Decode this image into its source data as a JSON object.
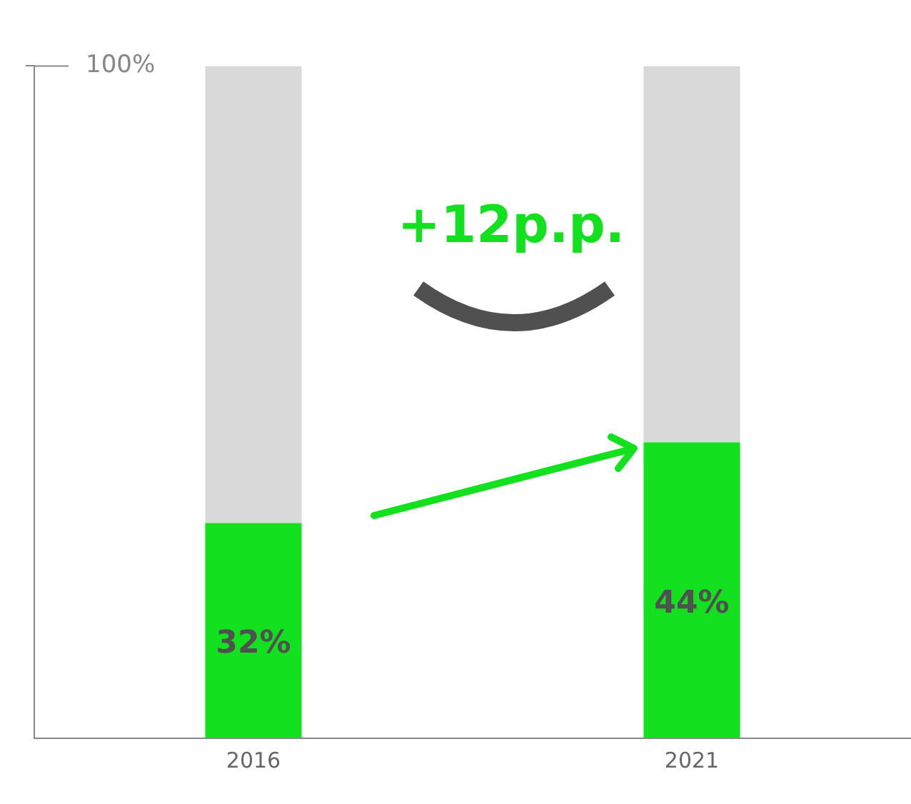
{
  "chart_data": {
    "type": "bar",
    "stacked": true,
    "categories": [
      "2016",
      "2021"
    ],
    "series": [
      {
        "color": "#13e01e",
        "values": [
          32,
          44
        ],
        "value_labels": [
          "32%",
          "44%"
        ]
      },
      {
        "color": "#d9d9d9",
        "values": [
          68,
          56
        ]
      }
    ],
    "ylim": [
      0,
      100
    ],
    "yticks": [
      {
        "value": 100,
        "label": "100%"
      }
    ],
    "grid": false,
    "legend": false,
    "annotations": [
      "+12p.p."
    ]
  }
}
